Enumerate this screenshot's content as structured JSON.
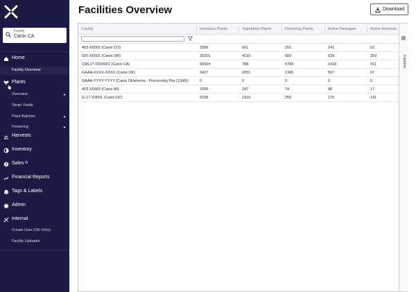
{
  "header": {
    "title": "Facilities Overview",
    "download_label": "Download"
  },
  "facility_selector": {
    "label": "Facility",
    "value": "Canix CA"
  },
  "sidebar": {
    "items": [
      {
        "label": "Home",
        "icon": "home-icon"
      },
      {
        "label": "Facility Overview",
        "sub": true,
        "active": true
      },
      {
        "label": "Plants",
        "icon": "plant-icon"
      },
      {
        "label": "Overview",
        "sub": true,
        "chevron": true
      },
      {
        "label": "Strain Yields",
        "sub": true
      },
      {
        "label": "Plant Batches",
        "sub": true,
        "chevron": true
      },
      {
        "label": "Flowering",
        "sub": true,
        "chevron": true
      },
      {
        "label": "Harvests",
        "icon": "scale-icon"
      },
      {
        "label": "Inventory",
        "icon": "inventory-icon"
      },
      {
        "label": "Sales",
        "icon": "dollar-icon"
      },
      {
        "label": "Financial Reports",
        "icon": "chart-icon"
      },
      {
        "label": "Tags & Labels",
        "icon": "printer-icon"
      },
      {
        "label": "Admin",
        "icon": "gear-icon"
      },
      {
        "label": "Internal",
        "icon": "tools-icon"
      },
      {
        "label": "Create User (OK-Only)",
        "sub": true
      },
      {
        "label": "Facility Uploader",
        "sub": true
      }
    ]
  },
  "grid": {
    "columns": [
      "Facility",
      "Immature Plants",
      "Vegetative Plants",
      "Flowering Plants",
      "Active Packages",
      "Active Harvests"
    ],
    "rows": [
      [
        "403-X0002 (Canix CO)",
        "2589",
        "661",
        "201",
        "141",
        "52"
      ],
      [
        "020-X0001 (Canix OR)",
        "30315",
        "4193",
        "583",
        "639",
        "359"
      ],
      [
        "CML17-0000001 (Canix CA)",
        "60424",
        "788",
        "5784",
        "1418",
        "911"
      ],
      [
        "GAAA-XXXX-XXXX (Canix OK)",
        "3427",
        "2051",
        "1365",
        "567",
        "67"
      ],
      [
        "GAAA-YYYY-YYYY (Canix Oklahoma - Processing Pits (1349))",
        "0",
        "0",
        "0",
        "0",
        "0"
      ],
      [
        "403-X0003 (Canix MI)",
        "2999",
        "187",
        "74",
        "88",
        "17"
      ],
      [
        "G-17-X0001 (Canix DC)",
        "5239",
        "1915",
        "255",
        "270",
        "141"
      ]
    ],
    "columns_panel_label": "Columns"
  },
  "colors": {
    "sidebar_bg": "#1b1a44",
    "badge_accent": "#8a9bff"
  }
}
